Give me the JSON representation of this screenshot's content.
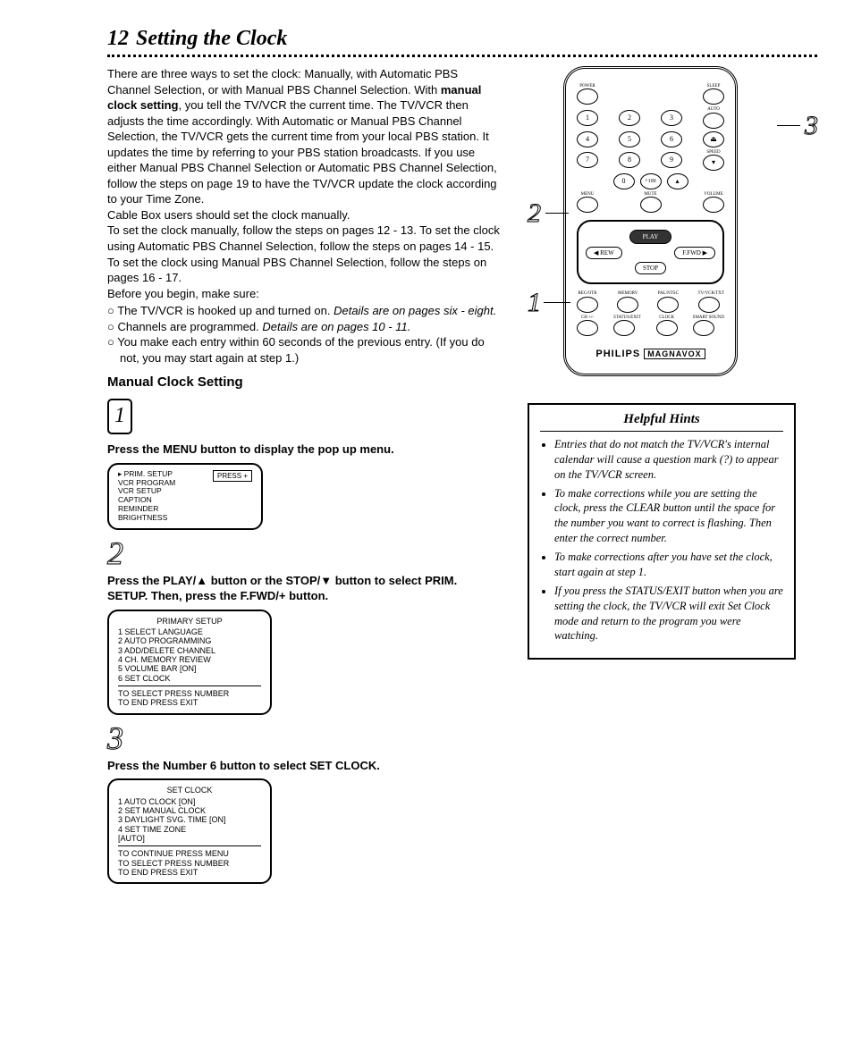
{
  "page": {
    "number": "12",
    "title": "Setting the Clock"
  },
  "intro": {
    "p1": "There are three ways to set the clock: Manually, with Automatic PBS Channel Selection, or with Manual PBS Channel Selection. With ",
    "p1b": "manual clock setting",
    "p1_2": ", you tell the TV/VCR the current time. The TV/VCR then adjusts the time accordingly. With Automatic or Manual PBS Channel Selection, the TV/VCR gets the current time from your local PBS station. It updates the time by referring to your PBS station broadcasts. If you use either Manual PBS Channel Selection or Automatic PBS Channel Selection, follow the steps on page 19 to have the TV/VCR update the clock according to your Time Zone.",
    "p2": "Cable Box users should set the clock manually.",
    "p3": "To set the clock manually, follow the steps on pages 12 - 13. To set the clock using Automatic PBS Channel Selection, follow the steps on pages 14 - 15. To set the clock using Manual PBS Channel Selection, follow the steps on pages 16 - 17.",
    "p4": "Before you begin, make sure:",
    "bullets": [
      {
        "text": "The TV/VCR is hooked up and turned on. ",
        "ital": "Details are on pages six - eight."
      },
      {
        "text": "Channels are programmed. ",
        "ital": "Details are on pages 10 - 11."
      },
      {
        "text": "You make each entry within 60 seconds of the previous entry. (If you do not, you may start again at step 1.)",
        "ital": ""
      }
    ]
  },
  "manual": {
    "heading": "Manual Clock Setting",
    "step1": {
      "text": "Press the MENU button to display the pop up menu.",
      "menu": {
        "items": [
          "▸ PRIM. SETUP",
          "   VCR PROGRAM",
          "   VCR SETUP",
          "   CAPTION",
          "   REMINDER",
          "   BRIGHTNESS"
        ],
        "sidebtn": "PRESS +"
      }
    },
    "step2": {
      "text": "Press the PLAY/▲ button or the STOP/▼ button to select PRIM. SETUP. Then, press the F.FWD/+ button.",
      "menu": {
        "hdr": "PRIMARY SETUP",
        "items": [
          "1 SELECT LANGUAGE",
          "2 AUTO PROGRAMMING",
          "3 ADD/DELETE CHANNEL",
          "4 CH. MEMORY REVIEW",
          "5 VOLUME BAR          [ON]",
          "6 SET CLOCK"
        ],
        "footer": [
          "TO SELECT PRESS NUMBER",
          "TO END PRESS EXIT"
        ]
      }
    },
    "step3": {
      "text": "Press the Number 6 button to select SET CLOCK.",
      "menu": {
        "hdr": "SET CLOCK",
        "items": [
          "1 AUTO CLOCK            [ON]",
          "2 SET MANUAL CLOCK",
          "3 DAYLIGHT SVG. TIME   [ON]",
          "4 SET TIME ZONE",
          "                                [AUTO]"
        ],
        "footer": [
          "TO CONTINUE PRESS MENU",
          "TO SELECT PRESS NUMBER",
          "TO END PRESS EXIT"
        ]
      }
    }
  },
  "remote": {
    "toprow_l": "POWER",
    "toprow_r": "SLEEP",
    "numpad": [
      "1",
      "2",
      "3",
      "4",
      "5",
      "6",
      "7",
      "8",
      "9",
      "0",
      "+100",
      "⌫"
    ],
    "auto": "AUTO",
    "speed": "SPEED",
    "mid_l": "MENU",
    "mid_m": "MUTE",
    "mid_r": "VOLUME",
    "play": "PLAY",
    "rew": "◀ REW",
    "ffwd": "F.FWD ▶",
    "stop": "STOP",
    "bottom_lbls": [
      "REC/OTR",
      "MEMORY",
      "PAL/NTSC",
      "TV/VCR/TXT"
    ],
    "bottom2_lbls": [
      "CH +/-",
      "STATUS/EXIT",
      "CLOCK",
      "SMART SOUND"
    ],
    "brand": "PHILIPS",
    "brand2": "MAGNAVOX"
  },
  "hints": {
    "title": "Helpful Hints",
    "items": [
      "Entries that do not match the TV/VCR's internal calendar will cause a question mark (?) to appear on the TV/VCR screen.",
      "To make corrections while you are setting the clock, press the CLEAR button until the space for the number you want to correct is flashing. Then enter the correct number.",
      "To make corrections after you have set the clock, start again at step 1.",
      "If you press the STATUS/EXIT button when you are setting the clock, the TV/VCR will exit Set Clock mode and return to the program you were watching."
    ]
  }
}
